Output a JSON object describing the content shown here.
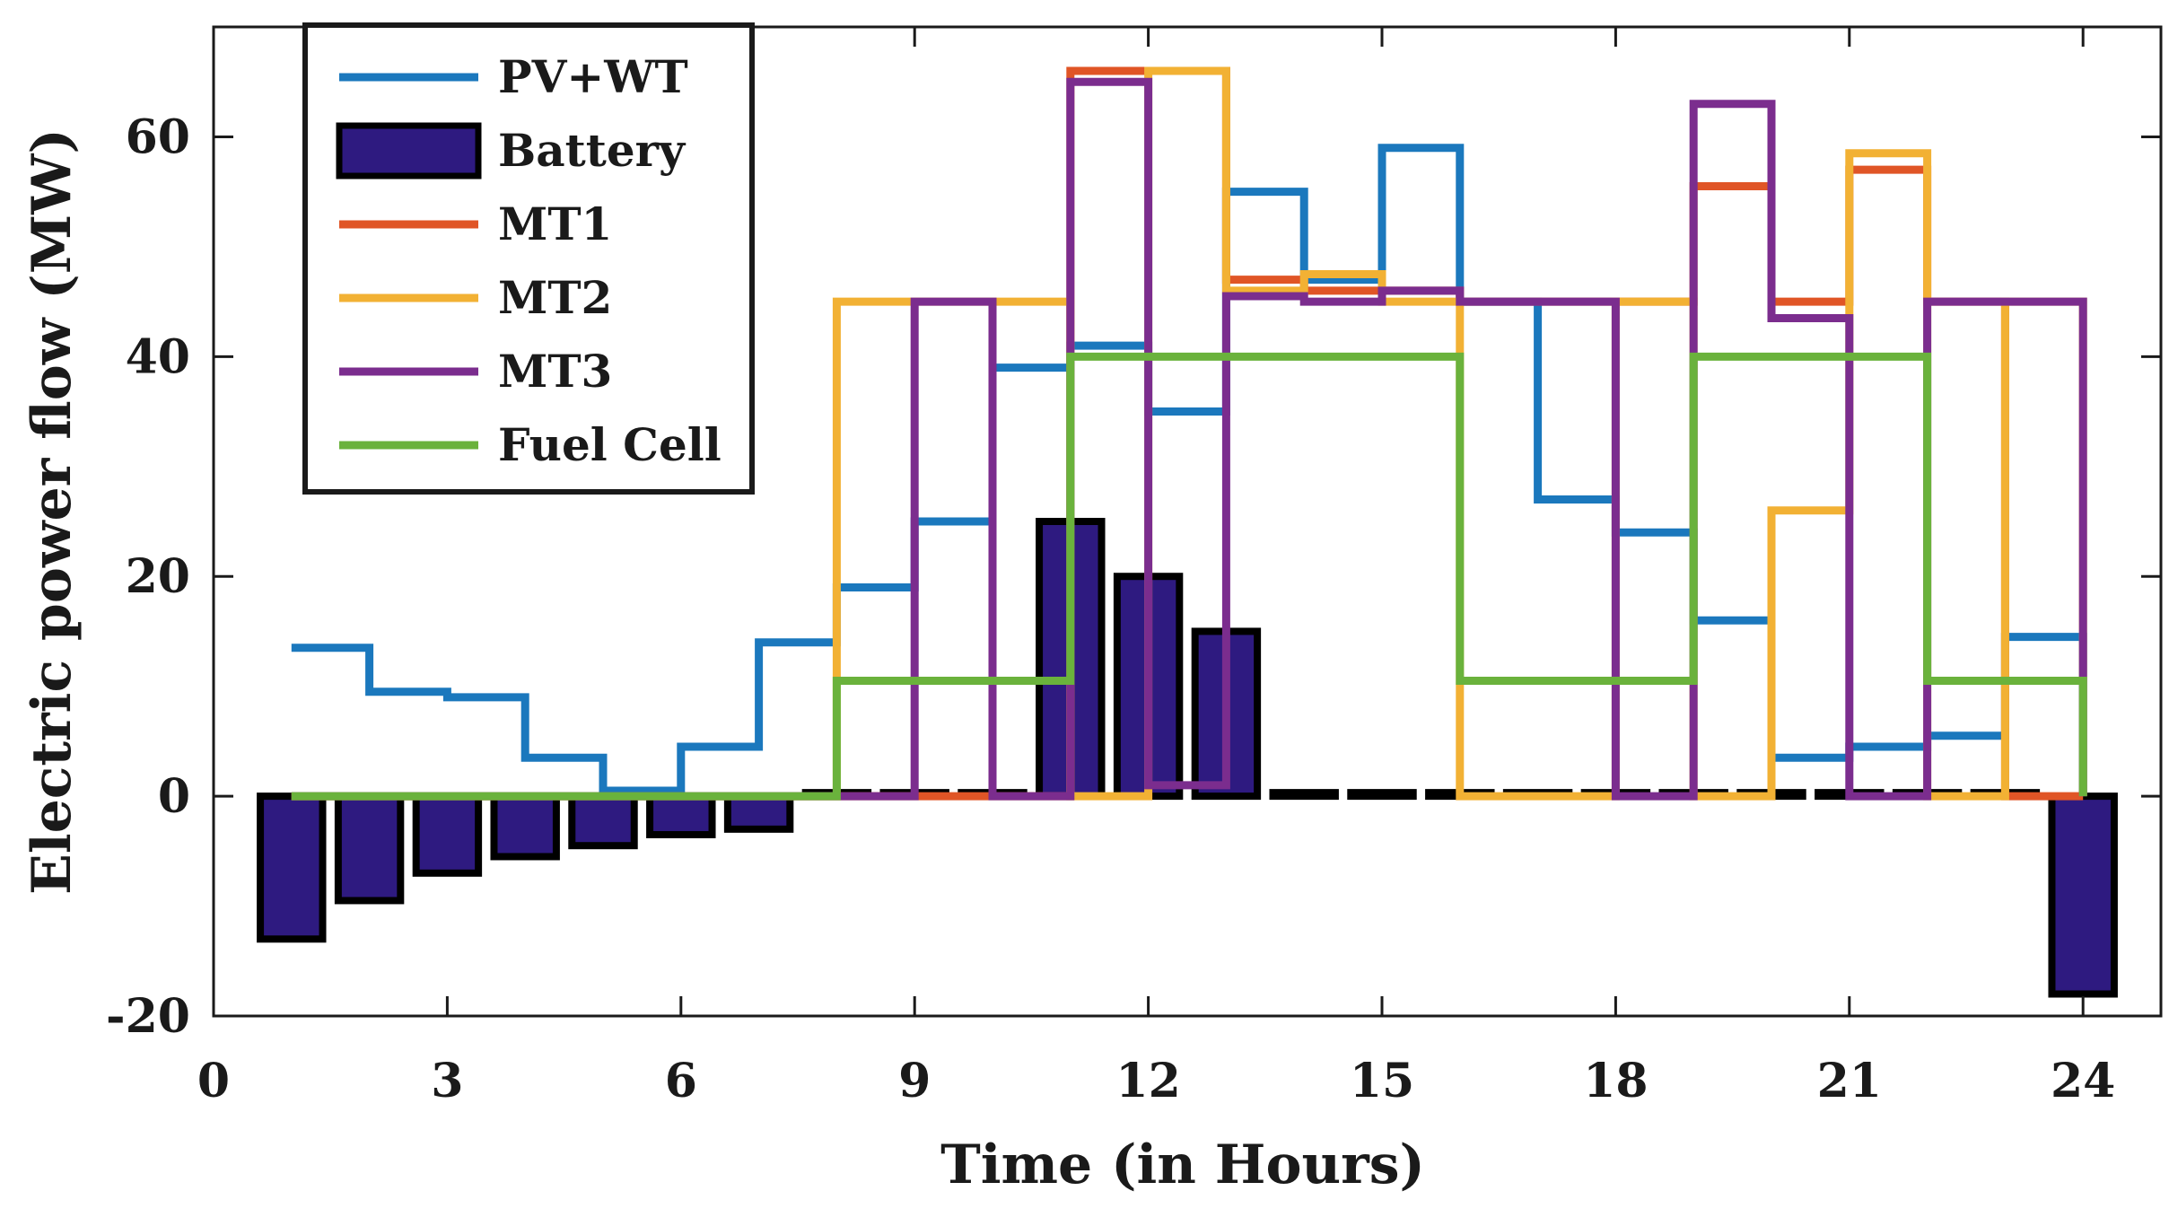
{
  "chart_data": {
    "type": "line",
    "title": "",
    "xlabel": "Time (in Hours)",
    "ylabel": "Electric power flow (MW)",
    "xlim": [
      0,
      25
    ],
    "ylim": [
      -20,
      70
    ],
    "xticks": [
      0,
      3,
      6,
      9,
      12,
      15,
      18,
      21,
      24
    ],
    "yticks": [
      -20,
      0,
      20,
      40,
      60
    ],
    "grid": false,
    "legend_position": "top-left",
    "step_hours": [
      1,
      2,
      3,
      4,
      5,
      6,
      7,
      8,
      9,
      10,
      11,
      12,
      13,
      14,
      15,
      16,
      17,
      18,
      19,
      20,
      21,
      22,
      23,
      24
    ],
    "bar_series": {
      "name": "Battery",
      "color": "#2e1a80",
      "edge_color": "#000000",
      "values": [
        -13,
        -9.5,
        -7,
        -5.5,
        -4.5,
        -3.5,
        -3,
        0,
        0,
        0,
        25,
        20,
        15,
        0,
        0,
        0,
        0,
        0,
        0,
        0,
        0,
        0,
        0,
        -18
      ]
    },
    "series": [
      {
        "name": "PV+WT",
        "color": "#1b78bd",
        "values": [
          13.5,
          9.5,
          9,
          3.5,
          0.5,
          4.5,
          14,
          19,
          25,
          39,
          41,
          35,
          55,
          47,
          59,
          45,
          27,
          24,
          16,
          3.5,
          4.5,
          5.5,
          14.5,
          0
        ]
      },
      {
        "name": "MT1",
        "color": "#e05526",
        "values": [
          0,
          0,
          0,
          0,
          0,
          0,
          0,
          0,
          0,
          0,
          66,
          66,
          47,
          46,
          46,
          45,
          45,
          45,
          55.5,
          45,
          57,
          45,
          0,
          0
        ]
      },
      {
        "name": "MT2",
        "color": "#f2b134",
        "values": [
          0,
          0,
          0,
          0,
          0,
          0,
          0,
          45,
          45,
          45,
          0,
          66,
          46,
          47.5,
          45,
          0,
          0,
          45,
          0,
          26,
          58.5,
          0,
          45,
          0
        ]
      },
      {
        "name": "MT3",
        "color": "#7b2d8e",
        "values": [
          0,
          0,
          0,
          0,
          0,
          0,
          0,
          0,
          45,
          0,
          65,
          1,
          45.5,
          45,
          46,
          45,
          45,
          0,
          63,
          43.5,
          0,
          45,
          45,
          0
        ]
      },
      {
        "name": "Fuel Cell",
        "color": "#6ab23c",
        "values": [
          0,
          0,
          0,
          0,
          0,
          0,
          0,
          10.5,
          10.5,
          10.5,
          40,
          40,
          40,
          40,
          40,
          10.5,
          10.5,
          10.5,
          40,
          40,
          40,
          10.5,
          10.5,
          0
        ]
      }
    ],
    "legend": [
      "PV+WT",
      "Battery",
      "MT1",
      "MT2",
      "MT3",
      "Fuel Cell"
    ]
  }
}
